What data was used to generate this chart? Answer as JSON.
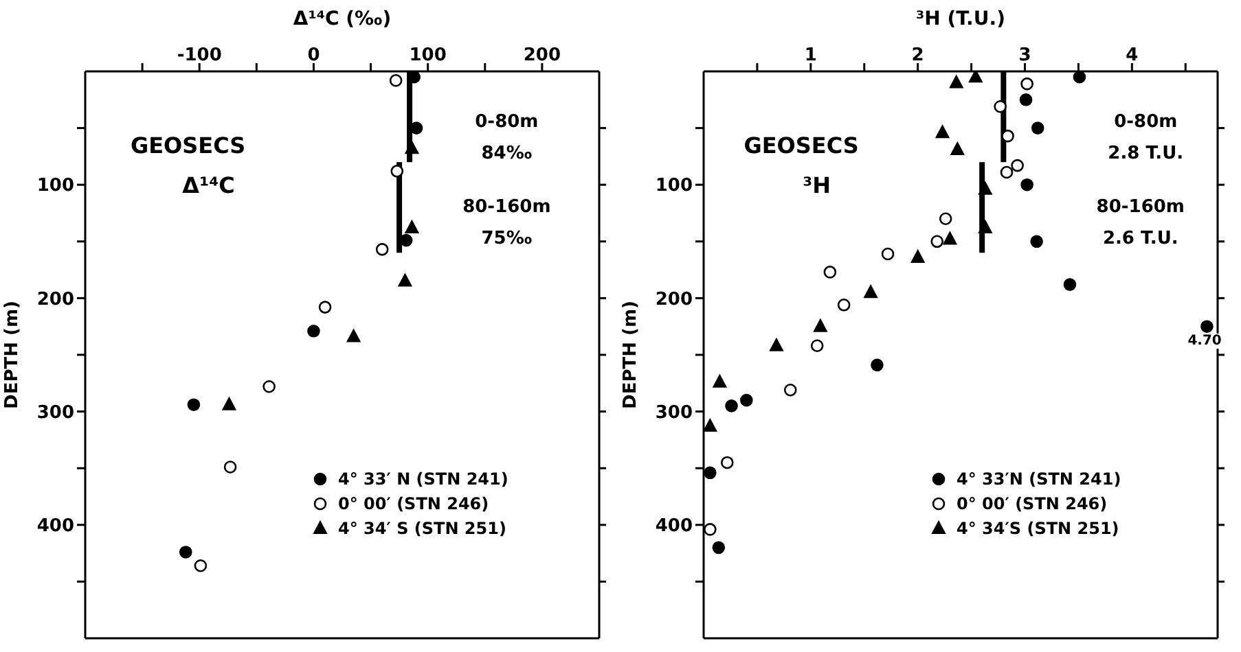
{
  "chart_data": [
    {
      "type": "scatter",
      "xlabel": "Δ¹⁴C (‰)",
      "ylabel": "DEPTH (m)",
      "xlim": [
        -200,
        250
      ],
      "xticks": [
        {
          "value": -150,
          "label": null
        },
        -100,
        {
          "value": -50,
          "label": null
        },
        0,
        {
          "value": 50,
          "label": null
        },
        100,
        {
          "value": 150,
          "label": null
        },
        200
      ],
      "ylim": [
        500,
        0
      ],
      "yticks": [
        {
          "value": 50,
          "label": null
        },
        100,
        {
          "value": 150,
          "label": null
        },
        200,
        {
          "value": 250,
          "label": null
        },
        300,
        {
          "value": 350,
          "label": null
        },
        400,
        {
          "value": 450,
          "label": null
        }
      ],
      "legend": "bottom right",
      "annotations": [
        "GEOSECS",
        "Δ¹⁴C",
        "0-80m",
        "84‰",
        "80-160m",
        "75‰"
      ],
      "series": [
        {
          "name": "4° 33′ N (STN 241)",
          "color": "#000000",
          "marker": "circle",
          "x": [
            88,
            90,
            81,
            0,
            -105,
            -112
          ],
          "values": [
            5,
            50,
            149,
            229,
            294,
            424
          ]
        },
        {
          "name": "0° 00′ (STN 246)",
          "color": "#ffffff",
          "marker": "circle",
          "x": [
            72,
            73,
            60,
            10,
            -39,
            -73,
            -99
          ],
          "values": [
            8,
            88,
            157,
            208,
            278,
            349,
            436
          ]
        },
        {
          "name": "4° 34′ S (STN 251)",
          "color": "#000000",
          "marker": "triangle",
          "x": [
            86,
            86,
            80,
            35,
            -74
          ],
          "values": [
            68,
            138,
            185,
            234,
            294
          ]
        },
        {
          "type": "line",
          "color": "#000000",
          "x": [
            84,
            84
          ],
          "values": [
            0,
            80
          ]
        },
        {
          "type": "line",
          "color": "#000000",
          "x": [
            75,
            75
          ],
          "values": [
            80,
            160
          ]
        }
      ]
    },
    {
      "type": "scatter",
      "xlabel": "³H (T.U.)",
      "ylabel": "DEPTH (m)",
      "xlim": [
        0,
        4.8
      ],
      "xticks": [
        {
          "value": 0.5,
          "label": null
        },
        1,
        {
          "value": 1.5,
          "label": null
        },
        2,
        {
          "value": 2.5,
          "label": null
        },
        3,
        {
          "value": 3.5,
          "label": null
        },
        4,
        {
          "value": 4.5,
          "label": null
        }
      ],
      "ylim": [
        500,
        0
      ],
      "yticks": [
        {
          "value": 50,
          "label": null
        },
        100,
        {
          "value": 150,
          "label": null
        },
        200,
        {
          "value": 250,
          "label": null
        },
        300,
        {
          "value": 350,
          "label": null
        },
        400,
        {
          "value": 450,
          "label": null
        }
      ],
      "legend": "bottom right",
      "annotations": [
        "GEOSECS",
        "³H",
        "0-80m",
        "2.8 T.U.",
        "80-160m",
        "2.6 T.U.",
        {
          "text": "4.70",
          "x": 4.7,
          "y": 225
        }
      ],
      "series": [
        {
          "name": "4° 33′N (STN 241)",
          "color": "#000000",
          "marker": "circle",
          "x": [
            3.51,
            3.01,
            3.12,
            3.02,
            3.11,
            3.42,
            4.7,
            1.62,
            0.4,
            0.26,
            0.06,
            0.14
          ],
          "values": [
            5,
            25,
            50,
            100,
            150,
            188,
            225,
            259,
            290,
            295,
            354,
            420
          ]
        },
        {
          "name": "0° 00′ (STN 246)",
          "color": "#ffffff",
          "marker": "circle",
          "x": [
            3.02,
            2.77,
            2.84,
            2.83,
            2.93,
            2.26,
            2.18,
            1.72,
            1.18,
            1.31,
            1.06,
            0.81,
            0.22,
            0.06
          ],
          "values": [
            11,
            31,
            57,
            89,
            83,
            130,
            150,
            161,
            177,
            206,
            242,
            281,
            345,
            404
          ]
        },
        {
          "name": "4° 34′S (STN 251)",
          "color": "#000000",
          "marker": "triangle",
          "x": [
            2.36,
            2.54,
            2.23,
            2.37,
            2.63,
            2.63,
            2.3,
            2.0,
            1.56,
            1.09,
            0.68,
            0.15,
            0.06
          ],
          "values": [
            10,
            5,
            54,
            69,
            104,
            138,
            148,
            164,
            195,
            225,
            242,
            274,
            313
          ]
        },
        {
          "type": "line",
          "color": "#000000",
          "x": [
            2.8,
            2.8
          ],
          "values": [
            0,
            80
          ]
        },
        {
          "type": "line",
          "color": "#000000",
          "x": [
            2.6,
            2.6
          ],
          "values": [
            80,
            160
          ]
        }
      ]
    }
  ]
}
